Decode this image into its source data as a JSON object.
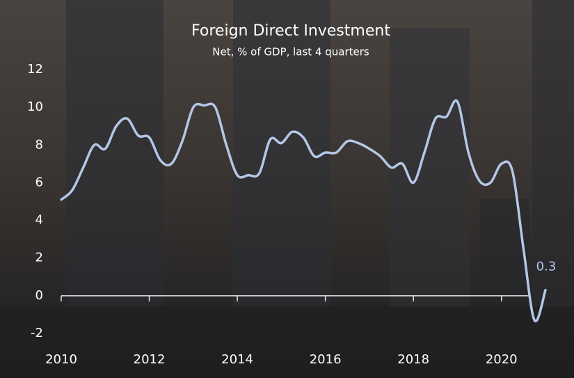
{
  "chart_data": {
    "type": "line",
    "title": "Foreign Direct Investment",
    "subtitle": "Net, % of GDP, last 4 quarters",
    "x": [
      2010,
      2010.25,
      2010.5,
      2010.75,
      2011,
      2011.25,
      2011.5,
      2011.75,
      2012,
      2012.25,
      2012.5,
      2012.75,
      2013,
      2013.25,
      2013.5,
      2013.75,
      2014,
      2014.25,
      2014.5,
      2014.75,
      2015,
      2015.25,
      2015.5,
      2015.75,
      2016,
      2016.25,
      2016.5,
      2016.75,
      2017,
      2017.25,
      2017.5,
      2017.75,
      2018,
      2018.25,
      2018.5,
      2018.75,
      2019,
      2019.25,
      2019.5,
      2019.75,
      2020,
      2020.25,
      2020.5,
      2020.75,
      2021
    ],
    "series": [
      {
        "color": "#b4c7e7",
        "values": [
          5.1,
          5.6,
          6.8,
          8.0,
          7.8,
          9.0,
          9.4,
          8.5,
          8.4,
          7.2,
          7.0,
          8.2,
          10.0,
          10.1,
          10.0,
          8.0,
          6.4,
          6.4,
          6.5,
          8.3,
          8.1,
          8.7,
          8.4,
          7.4,
          7.6,
          7.6,
          8.2,
          8.1,
          7.8,
          7.4,
          6.8,
          7.0,
          6.0,
          7.6,
          9.4,
          9.5,
          10.3,
          7.6,
          6.1,
          6.0,
          7.0,
          6.6,
          2.5,
          -1.3,
          0.3
        ]
      }
    ],
    "xlim": [
      2010,
      2021
    ],
    "xticks": [
      2010,
      2012,
      2014,
      2016,
      2018,
      2020
    ],
    "ylim": [
      -2,
      12
    ],
    "yticks": [
      -2,
      0,
      2,
      4,
      6,
      8,
      10,
      12
    ]
  }
}
